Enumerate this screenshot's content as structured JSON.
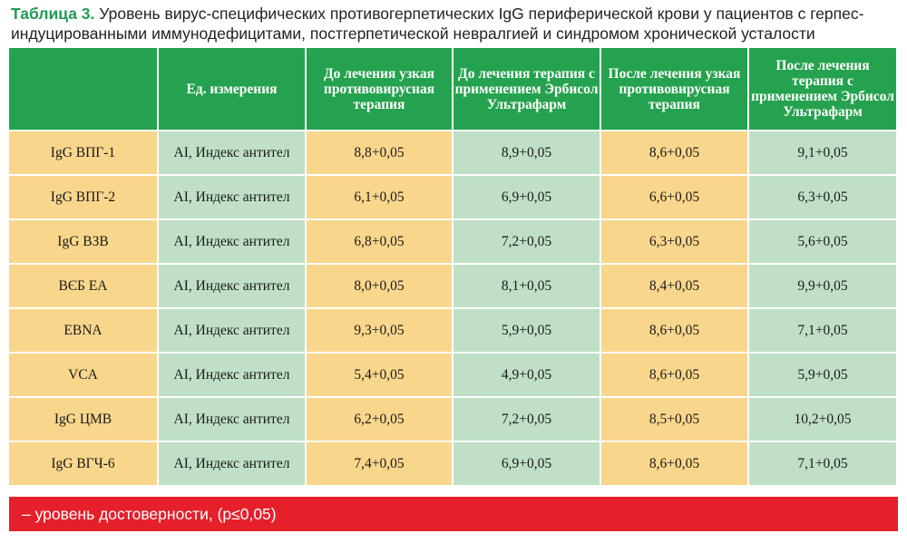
{
  "caption": {
    "label": "Таблица 3.",
    "text": " Уровень вирус-специфических противогерпетических IgG периферической крови у пациентов с герпес-индуцированными иммунодефицитами, постгерпетической невралгией и синдромом хронической усталости"
  },
  "table": {
    "headers": [
      "",
      "Ед. измерения",
      "До лечения узкая противовирусная терапия",
      "До лечения терапия с применением Эрбисол Ультрафарм",
      "После лечения узкая противовирусная терапия",
      "После лечения терапия с применением Эрбисол Ультрафарм"
    ],
    "rows": [
      [
        "IgG ВПГ-1",
        "AI, Индекс антител",
        "8,8+0,05",
        "8,9+0,05",
        "8,6+0,05",
        "9,1+0,05"
      ],
      [
        "IgG ВПГ-2",
        "AI, Индекс антител",
        "6,1+0,05",
        "6,9+0,05",
        "6,6+0,05",
        "6,3+0,05"
      ],
      [
        "IgG ВЗВ",
        "AI, Индекс антител",
        "6,8+0,05",
        "7,2+0,05",
        "6,3+0,05",
        "5,6+0,05"
      ],
      [
        "ВЄБ ЕА",
        "AI, Индекс антител",
        "8,0+0,05",
        "8,1+0,05",
        "8,4+0,05",
        "9,9+0,05"
      ],
      [
        "EBNA",
        "AI, Индекс антител",
        "9,3+0,05",
        "5,9+0,05",
        "8,6+0,05",
        "7,1+0,05"
      ],
      [
        "VCA",
        "AI, Индекс антител",
        "5,4+0,05",
        "4,9+0,05",
        "8,6+0,05",
        "5,9+0,05"
      ],
      [
        "IgG ЦМВ",
        "AI, Индекс антител",
        "6,2+0,05",
        "7,2+0,05",
        "8,5+0,05",
        "10,2+0,05"
      ],
      [
        "IgG ВГЧ-6",
        "AI, Индекс антител",
        "7,4+0,05",
        "6,9+0,05",
        "8,6+0,05",
        "7,1+0,05"
      ]
    ]
  },
  "footer": {
    "note": "– уровень достоверности, (p≤0,05)"
  },
  "colors": {
    "header_green": "#25a24f",
    "peach": "#f8d68c",
    "mint": "#bfe0c6",
    "caption_label": "#1f9c50",
    "footer_red": "#e5202b"
  }
}
